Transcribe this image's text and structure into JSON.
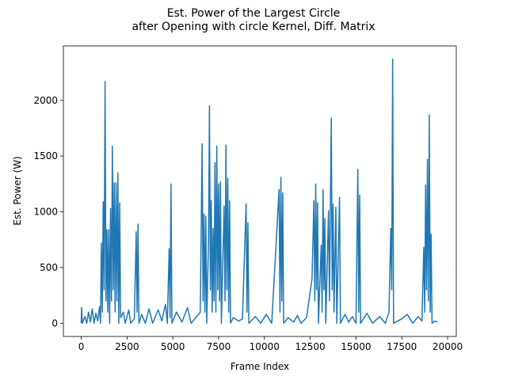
{
  "chart_data": {
    "type": "line",
    "title": [
      "Est. Power of the Largest Circle",
      "after Opening with circle Kernel, Diff. Matrix"
    ],
    "x_label": "Frame Index",
    "y_label": "Est. Power (W)",
    "color": "#1f77b4",
    "grid": false,
    "xlim": [
      -975,
      20475
    ],
    "ylim": [
      -118.5,
      2488.5
    ],
    "xticks": [
      0,
      2500,
      5000,
      7500,
      10000,
      12500,
      15000,
      17500,
      20000
    ],
    "yticks": [
      0,
      500,
      1000,
      1500,
      2000
    ],
    "x": [
      0,
      20,
      60,
      200,
      300,
      400,
      500,
      600,
      700,
      800,
      900,
      1000,
      1050,
      1100,
      1150,
      1200,
      1250,
      1300,
      1350,
      1400,
      1450,
      1500,
      1550,
      1600,
      1650,
      1700,
      1750,
      1800,
      1850,
      1900,
      1950,
      2000,
      2050,
      2100,
      2150,
      2300,
      2400,
      2600,
      2700,
      2900,
      3000,
      3050,
      3100,
      3150,
      3300,
      3500,
      3700,
      3900,
      4200,
      4400,
      4600,
      4700,
      4800,
      4850,
      4900,
      4950,
      5200,
      5500,
      5800,
      6000,
      6300,
      6500,
      6600,
      6650,
      6700,
      6750,
      6800,
      6850,
      6950,
      7000,
      7050,
      7100,
      7150,
      7200,
      7250,
      7300,
      7350,
      7400,
      7450,
      7500,
      7550,
      7600,
      7650,
      7800,
      7850,
      7900,
      7950,
      8000,
      8050,
      8100,
      8150,
      8300,
      8600,
      8800,
      9000,
      9050,
      9100,
      9150,
      9500,
      9800,
      10100,
      10400,
      10800,
      10850,
      10900,
      10950,
      11000,
      11050,
      11300,
      11600,
      11800,
      12000,
      12300,
      12600,
      12700,
      12750,
      12800,
      12850,
      12900,
      12950,
      13100,
      13150,
      13200,
      13250,
      13300,
      13350,
      13500,
      13550,
      13650,
      13700,
      13750,
      13800,
      13900,
      13950,
      14100,
      14150,
      14400,
      14600,
      14800,
      15000,
      15100,
      15150,
      15200,
      15250,
      15600,
      15900,
      16300,
      16600,
      16800,
      16900,
      16950,
      17000,
      17050,
      17500,
      17800,
      18100,
      18400,
      18600,
      18700,
      18750,
      18800,
      18850,
      18900,
      18950,
      19000,
      19050,
      19100,
      19150,
      19300,
      19450
    ],
    "values": [
      0,
      140,
      0,
      60,
      0,
      100,
      10,
      130,
      0,
      90,
      20,
      150,
      0,
      720,
      100,
      1090,
      300,
      2170,
      200,
      840,
      100,
      840,
      0,
      1030,
      200,
      1590,
      300,
      1260,
      100,
      1260,
      200,
      1350,
      0,
      1080,
      50,
      100,
      0,
      120,
      0,
      40,
      820,
      100,
      890,
      0,
      80,
      0,
      130,
      0,
      120,
      20,
      170,
      0,
      670,
      50,
      1250,
      0,
      100,
      10,
      140,
      0,
      60,
      100,
      1610,
      200,
      980,
      100,
      960,
      0,
      760,
      1950,
      300,
      1100,
      100,
      850,
      200,
      1440,
      100,
      1590,
      300,
      1250,
      200,
      1270,
      0,
      1050,
      200,
      1600,
      300,
      1300,
      100,
      1100,
      0,
      50,
      20,
      40,
      1070,
      100,
      900,
      0,
      60,
      0,
      80,
      0,
      1200,
      100,
      1310,
      200,
      1170,
      0,
      50,
      10,
      70,
      0,
      50,
      400,
      1100,
      200,
      1250,
      300,
      1080,
      0,
      700,
      100,
      1200,
      300,
      940,
      0,
      1010,
      200,
      1840,
      300,
      1070,
      100,
      1040,
      0,
      1130,
      0,
      80,
      10,
      60,
      0,
      1380,
      100,
      1150,
      0,
      90,
      0,
      60,
      0,
      100,
      850,
      300,
      2370,
      0,
      40,
      80,
      0,
      60,
      20,
      680,
      100,
      1240,
      300,
      1470,
      200,
      1870,
      100,
      800,
      0,
      20,
      10
    ]
  }
}
